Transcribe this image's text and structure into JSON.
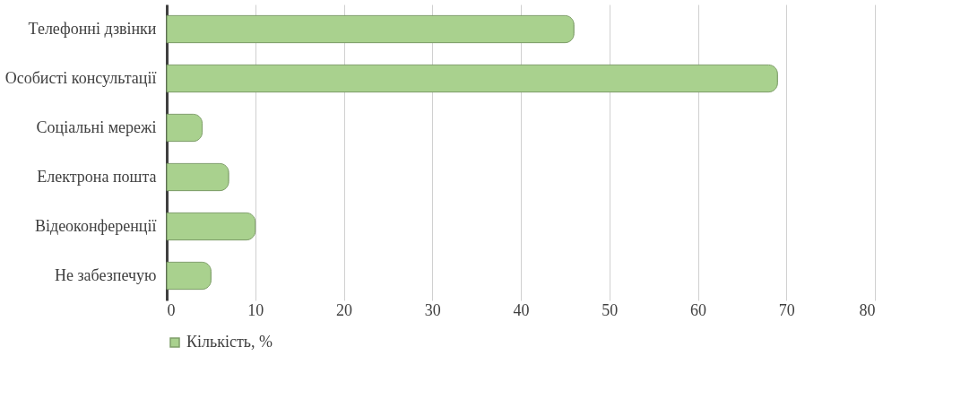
{
  "chart_data": {
    "type": "bar",
    "orientation": "horizontal",
    "categories": [
      "Телефонні дзвінки",
      "Особисті консультації",
      "Соціальні мережі",
      "Електрона пошта",
      "Відеоконференції",
      "Не забезпечую"
    ],
    "series": [
      {
        "name": "Кількість, %",
        "color": "#a9d18e",
        "values": [
          46,
          69,
          4,
          7,
          10,
          5
        ]
      }
    ],
    "xlim": [
      0,
      80
    ],
    "xticks": [
      0,
      10,
      20,
      30,
      40,
      50,
      60,
      70,
      80
    ],
    "grid": "x",
    "legend": "bottom"
  }
}
